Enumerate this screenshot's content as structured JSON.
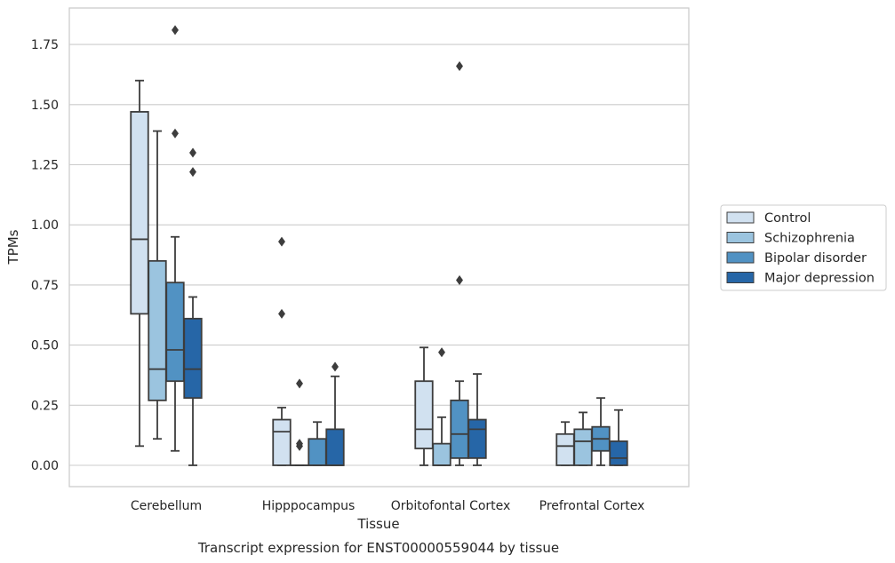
{
  "chart_data": {
    "type": "box",
    "title": "Transcript expression for ENST00000559044 by tissue",
    "xlabel": "Tissue",
    "ylabel": "TPMs",
    "ylim": [
      -0.09,
      1.9
    ],
    "yticks": [
      0.0,
      0.25,
      0.5,
      0.75,
      1.0,
      1.25,
      1.5,
      1.75
    ],
    "ytick_labels": [
      "0.00",
      "0.25",
      "0.50",
      "0.75",
      "1.00",
      "1.25",
      "1.50",
      "1.75"
    ],
    "grid": true,
    "legend_position": "right",
    "categories": [
      "Cerebellum",
      "Hipppocampus",
      "Orbitofontal Cortex",
      "Prefrontal Cortex"
    ],
    "series": [
      {
        "name": "Control",
        "color": "#d1e1f0",
        "boxes": [
          {
            "whislo": 0.08,
            "q1": 0.63,
            "med": 0.94,
            "q3": 1.47,
            "whishi": 1.6,
            "fliers": []
          },
          {
            "whislo": 0.0,
            "q1": 0.0,
            "med": 0.14,
            "q3": 0.19,
            "whishi": 0.24,
            "fliers": [
              0.63,
              0.93
            ]
          },
          {
            "whislo": 0.0,
            "q1": 0.07,
            "med": 0.15,
            "q3": 0.35,
            "whishi": 0.49,
            "fliers": []
          },
          {
            "whislo": 0.0,
            "q1": 0.0,
            "med": 0.08,
            "q3": 0.13,
            "whishi": 0.18,
            "fliers": []
          }
        ]
      },
      {
        "name": "Schizophrenia",
        "color": "#9bc4df",
        "boxes": [
          {
            "whislo": 0.11,
            "q1": 0.27,
            "med": 0.4,
            "q3": 0.85,
            "whishi": 1.39,
            "fliers": []
          },
          {
            "whislo": 0.0,
            "q1": 0.0,
            "med": 0.0,
            "q3": 0.0,
            "whishi": 0.0,
            "fliers": [
              0.08,
              0.09,
              0.34
            ]
          },
          {
            "whislo": 0.0,
            "q1": 0.0,
            "med": 0.0,
            "q3": 0.09,
            "whishi": 0.2,
            "fliers": [
              0.47
            ]
          },
          {
            "whislo": 0.0,
            "q1": 0.0,
            "med": 0.1,
            "q3": 0.15,
            "whishi": 0.22,
            "fliers": []
          }
        ]
      },
      {
        "name": "Bipolar disorder",
        "color": "#5192c3",
        "boxes": [
          {
            "whislo": 0.06,
            "q1": 0.35,
            "med": 0.48,
            "q3": 0.76,
            "whishi": 0.95,
            "fliers": [
              1.38,
              1.81
            ]
          },
          {
            "whislo": 0.0,
            "q1": 0.0,
            "med": 0.0,
            "q3": 0.11,
            "whishi": 0.18,
            "fliers": []
          },
          {
            "whislo": 0.0,
            "q1": 0.03,
            "med": 0.13,
            "q3": 0.27,
            "whishi": 0.35,
            "fliers": [
              0.77,
              1.66
            ]
          },
          {
            "whislo": 0.0,
            "q1": 0.06,
            "med": 0.11,
            "q3": 0.16,
            "whishi": 0.28,
            "fliers": []
          }
        ]
      },
      {
        "name": "Major depression",
        "color": "#2666a7",
        "boxes": [
          {
            "whislo": 0.0,
            "q1": 0.28,
            "med": 0.4,
            "q3": 0.61,
            "whishi": 0.7,
            "fliers": [
              1.22,
              1.3
            ]
          },
          {
            "whislo": 0.0,
            "q1": 0.0,
            "med": 0.0,
            "q3": 0.15,
            "whishi": 0.37,
            "fliers": [
              0.41
            ]
          },
          {
            "whislo": 0.0,
            "q1": 0.03,
            "med": 0.15,
            "q3": 0.19,
            "whishi": 0.38,
            "fliers": []
          },
          {
            "whislo": 0.0,
            "q1": 0.0,
            "med": 0.03,
            "q3": 0.1,
            "whishi": 0.23,
            "fliers": []
          }
        ]
      }
    ],
    "colors": {
      "grid": "#cccccc",
      "spine": "#cccccc",
      "line": "#3d3d3d",
      "text": "#262626"
    }
  }
}
